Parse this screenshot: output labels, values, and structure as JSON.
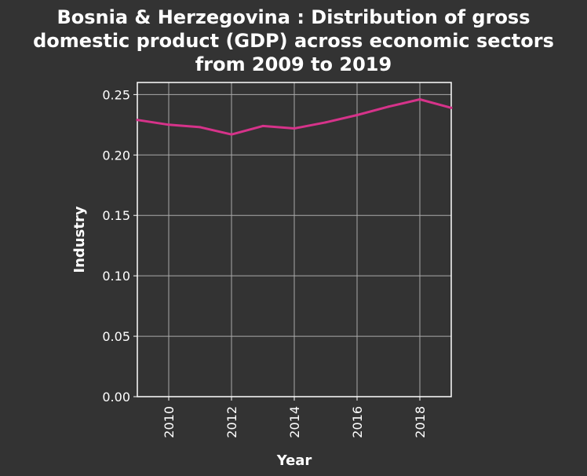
{
  "chart_data": {
    "type": "line",
    "title_lines": [
      "Bosnia & Herzegovina : Distribution of gross",
      "domestic product (GDP) across economic sectors",
      "from 2009 to 2019"
    ],
    "xlabel": "Year",
    "ylabel": "Industry",
    "xlim": [
      2009,
      2019
    ],
    "ylim": [
      0,
      0.26
    ],
    "x_ticks": [
      2010,
      2012,
      2014,
      2016,
      2018
    ],
    "y_ticks": [
      "0.00",
      "0.05",
      "0.10",
      "0.15",
      "0.20",
      "0.25"
    ],
    "grid": true,
    "series": [
      {
        "color": "#d6338a",
        "x": [
          2009,
          2010,
          2011,
          2012,
          2013,
          2014,
          2015,
          2016,
          2017,
          2018,
          2019
        ],
        "values": [
          0.229,
          0.225,
          0.223,
          0.217,
          0.224,
          0.222,
          0.227,
          0.233,
          0.24,
          0.246,
          0.239
        ]
      }
    ]
  },
  "colors": {
    "background": "#333333",
    "plot_border": "#ffffff",
    "grid": "#aaaaaa",
    "text": "#ffffff"
  }
}
